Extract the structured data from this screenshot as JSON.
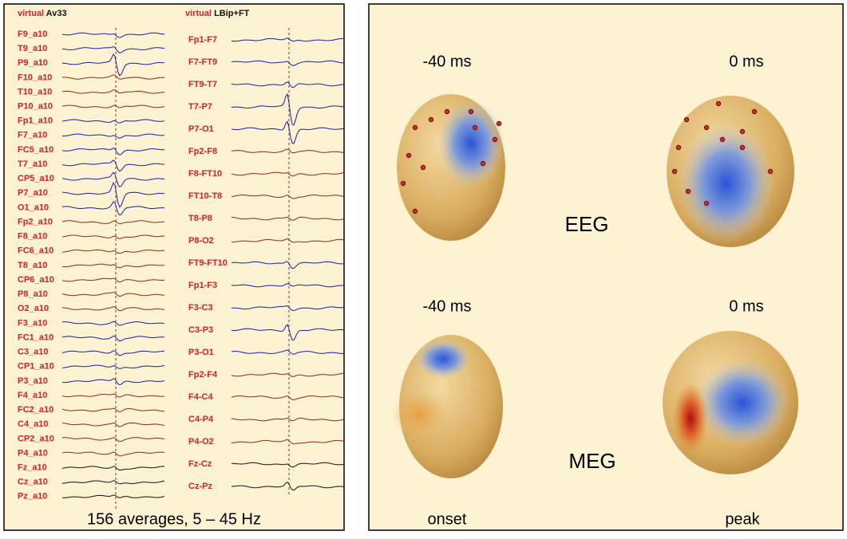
{
  "left_panel": {
    "header_prefix": "virtual",
    "header_name": "Av33",
    "channels": [
      "F9_a10",
      "T9_a10",
      "P9_a10",
      "F10_a10",
      "T10_a10",
      "P10_a10",
      "Fp1_a10",
      "F7_a10",
      "FC5_a10",
      "T7_a10",
      "CP5_a10",
      "P7_a10",
      "O1_a10",
      "Fp2_a10",
      "F8_a10",
      "FC6_a10",
      "T8_a10",
      "CP6_a10",
      "P8_a10",
      "O2_a10",
      "F3_a10",
      "FC1_a10",
      "C3_a10",
      "CP1_a10",
      "P3_a10",
      "F4_a10",
      "FC2_a10",
      "C4_a10",
      "CP2_a10",
      "P4_a10",
      "Fz_a10",
      "Cz_a10",
      "Pz_a10"
    ],
    "footer": "156 averages,  5 – 45 Hz"
  },
  "middle_panel": {
    "header_prefix": "virtual",
    "header_name": "LBip+FT",
    "channels": [
      "Fp1-F7",
      "F7-FT9",
      "FT9-T7",
      "T7-P7",
      "P7-O1",
      "Fp2-F8",
      "F8-FT10",
      "FT10-T8",
      "T8-P8",
      "P8-O2",
      "FT9-FT10",
      "Fp1-F3",
      "F3-C3",
      "C3-P3",
      "P3-O1",
      "Fp2-F4",
      "F4-C4",
      "C4-P4",
      "P4-O2",
      "Fz-Cz",
      "Cz-Pz"
    ]
  },
  "right_panel": {
    "times": [
      "-40 ms",
      "0 ms"
    ],
    "modalities": [
      "EEG",
      "MEG"
    ],
    "captions": [
      "onset",
      "peak"
    ],
    "times_lower": [
      "-40 ms",
      "0 ms"
    ]
  }
}
